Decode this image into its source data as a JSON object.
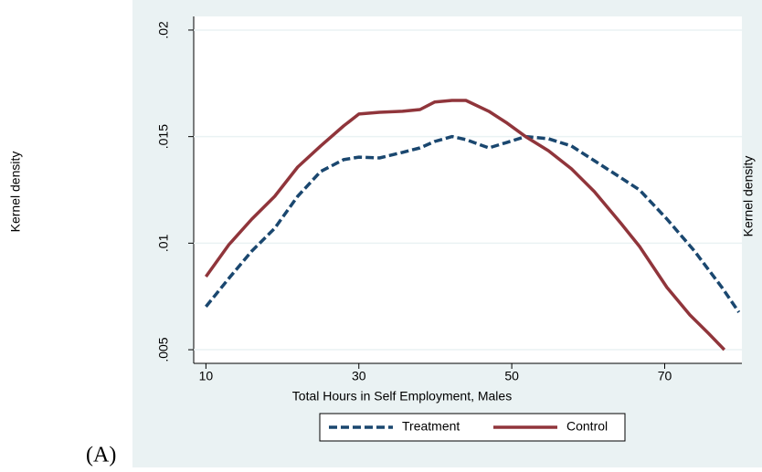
{
  "chart_data": {
    "type": "line",
    "xlabel": "Total Hours in Self Employment, Males",
    "ylabel": "Kernel density",
    "y2label": "Kernel density",
    "panel_label": "(A)",
    "xlim": [
      8.4,
      80.1
    ],
    "xticks": [
      10,
      30,
      50,
      70
    ],
    "ylim": [
      0.00436,
      0.02064
    ],
    "yticks": [
      {
        "value": 0.005,
        "label": ".005"
      },
      {
        "value": 0.01,
        "label": ".01"
      },
      {
        "value": 0.015,
        "label": ".015"
      },
      {
        "value": 0.02,
        "label": ".02"
      }
    ],
    "grid": true,
    "legend": "bottom",
    "series": [
      {
        "name": "Treatment",
        "color": "#1a476f",
        "dash": true,
        "x": [
          10,
          13,
          16,
          19,
          22,
          25,
          28,
          30,
          32.7,
          35.7,
          38,
          39.9,
          42.2,
          44,
          47,
          49.4,
          51.8,
          54.8,
          57.8,
          60.8,
          64.3,
          66.7,
          70.3,
          73.9,
          77.5,
          79.7
        ],
        "values": [
          0.00702,
          0.00835,
          0.00963,
          0.0107,
          0.0122,
          0.01336,
          0.01392,
          0.01404,
          0.014,
          0.01426,
          0.01447,
          0.01477,
          0.015,
          0.01486,
          0.01447,
          0.01473,
          0.015,
          0.0149,
          0.01456,
          0.01387,
          0.01306,
          0.0125,
          0.01113,
          0.00963,
          0.00792,
          0.00676
        ]
      },
      {
        "name": "Control",
        "color": "#90353b",
        "dash": false,
        "x": [
          10,
          13,
          16,
          19,
          22,
          25,
          28,
          30,
          32.7,
          35.7,
          38,
          39.9,
          42.2,
          44,
          47,
          49.4,
          51.8,
          54.8,
          57.8,
          60.8,
          64.3,
          66.7,
          70.3,
          73.3,
          75.7,
          77.8
        ],
        "values": [
          0.00843,
          0.00993,
          0.01113,
          0.0122,
          0.01357,
          0.01456,
          0.0155,
          0.01606,
          0.01614,
          0.01619,
          0.01627,
          0.01662,
          0.0167,
          0.0167,
          0.01619,
          0.01563,
          0.015,
          0.01434,
          0.01349,
          0.01242,
          0.01092,
          0.00985,
          0.00792,
          0.00663,
          0.00578,
          0.005
        ]
      }
    ]
  }
}
